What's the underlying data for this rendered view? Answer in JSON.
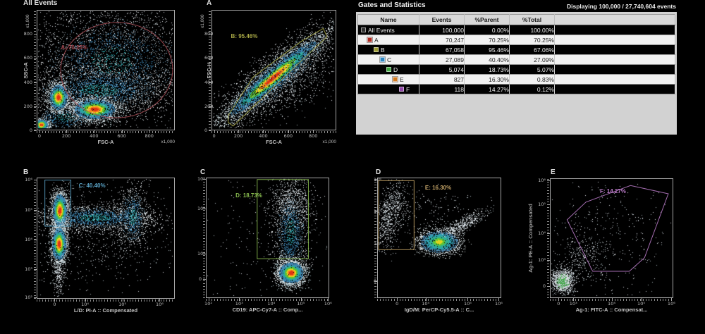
{
  "stats_panel": {
    "title": "Gates and Statistics",
    "displaying": "Displaying 100,000 / 27,740,604 events",
    "columns": [
      "Name",
      "Events",
      "%Parent",
      "%Total"
    ],
    "rows": [
      {
        "name": "All Events",
        "events": "100,000",
        "parent": "0.00%",
        "total": "100.00%",
        "color": "#2f2f2f",
        "indent": 0,
        "dark": true
      },
      {
        "name": "A",
        "events": "70,247",
        "parent": "70.25%",
        "total": "70.25%",
        "color": "#b02a20",
        "indent": 1,
        "dark": false
      },
      {
        "name": "B",
        "events": "67,058",
        "parent": "95.46%",
        "total": "67.06%",
        "color": "#9a9a30",
        "indent": 2,
        "dark": true
      },
      {
        "name": "C",
        "events": "27,089",
        "parent": "40.40%",
        "total": "27.09%",
        "color": "#2f86c1",
        "indent": 3,
        "dark": false
      },
      {
        "name": "D",
        "events": "5,074",
        "parent": "18.73%",
        "total": "5.07%",
        "color": "#3fa43f",
        "indent": 4,
        "dark": true
      },
      {
        "name": "E",
        "events": "827",
        "parent": "16.30%",
        "total": "0.83%",
        "color": "#d2791f",
        "indent": 5,
        "dark": false
      },
      {
        "name": "F",
        "events": "118",
        "parent": "14.27%",
        "total": "0.12%",
        "color": "#9146a8",
        "indent": 6,
        "dark": true
      }
    ]
  },
  "plots": [
    {
      "title": "All Events",
      "x_label": "FSC-A",
      "y_label": "SSC-A",
      "x_mult": "x1,000",
      "y_mult": "x1,000",
      "x_ticks": [
        "0",
        "200",
        "400",
        "600",
        "800"
      ],
      "y_ticks": [
        "800",
        "600",
        "400",
        "200",
        "0"
      ],
      "gate": {
        "label": "A: 70.25%",
        "color": "#a84a52"
      }
    },
    {
      "title": "A",
      "x_label": "FSC-A",
      "y_label": "FSC-H",
      "x_mult": "x1,000",
      "y_mult": "x1,000",
      "x_ticks": [
        "0",
        "200",
        "400",
        "600",
        "800"
      ],
      "y_ticks": [
        "800",
        "600",
        "400",
        "200",
        "0"
      ],
      "gate": {
        "label": "B: 95.46%",
        "color": "#a9a946"
      }
    },
    {
      "title": "B",
      "x_label": "L/D: PI-A :: Compensated",
      "y_label": "",
      "x_ticks": [
        "0",
        "10⁴",
        "10⁵",
        "10⁶"
      ],
      "y_ticks": [
        "10⁶",
        "10⁵",
        "10⁴",
        "10³",
        "10²"
      ],
      "gate": {
        "label": "C: 40.40%",
        "color": "#5ba5c9"
      }
    },
    {
      "title": "C",
      "x_label": "CD19: APC-Cy7-A :: Comp...",
      "y_label": "",
      "x_ticks": [
        "10²",
        "10³",
        "10⁴",
        "10⁵",
        "10⁶"
      ],
      "y_ticks": [
        "10⁶",
        "10⁵",
        "10⁴",
        "0"
      ],
      "gate": {
        "label": "D: 18.73%",
        "color": "#8abe50"
      }
    },
    {
      "title": "D",
      "x_label": "IgD/M: PerCP-Cy5.5-A :: C...",
      "y_label": "",
      "x_ticks": [
        "0",
        "10⁴",
        "10⁵",
        "10⁶"
      ],
      "y_ticks": [
        "10⁶",
        "10⁵",
        "10⁴",
        "0"
      ],
      "gate": {
        "label": "E: 16.30%",
        "color": "#c2a266"
      }
    },
    {
      "title": "E",
      "x_label": "Ag-1: FITC-A :: Compensat...",
      "y_label": "Ag-1: PE-A :: Compensated",
      "x_ticks": [
        "0",
        "10³",
        "10⁴",
        "10⁵",
        "10⁶"
      ],
      "y_ticks": [
        "10⁶",
        "10⁵",
        "10⁴",
        "10³",
        "0"
      ],
      "gate": {
        "label": "F: 14.27%",
        "color": "#bb7cc9"
      }
    }
  ]
}
